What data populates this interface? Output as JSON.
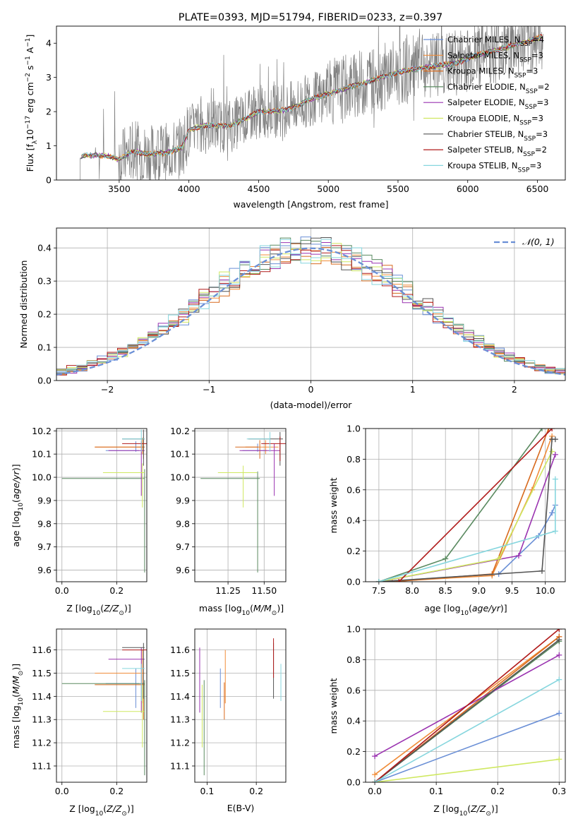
{
  "title": "PLATE=0393, MJD=51794, FIBERID=0233, z=0.397",
  "colors": {
    "Chabrier MILES": "#6a8fd6",
    "Salpeter MILES": "#f08d3a",
    "Kroupa MILES": "#d86a1e",
    "Chabrier ELODIE": "#5a8a60",
    "Salpeter ELODIE": "#9a33b0",
    "Kroupa ELODIE": "#cfe860",
    "Chabrier STELIB": "#555555",
    "Salpeter STELIB": "#b01a1a",
    "Kroupa STELIB": "#86d6de"
  },
  "chart_data": [
    {
      "type": "line",
      "xlabel": "wavelength [Angstrom, rest frame]",
      "ylabel": "Flux [f_λ10^-17 erg cm^-2 s^-1 A^-1]",
      "xlim": [
        3050,
        6700
      ],
      "ylim": [
        0,
        4.5
      ],
      "xticks": [
        3500,
        4000,
        4500,
        5000,
        5500,
        6000,
        6500
      ],
      "yticks": [
        0,
        1,
        2,
        3,
        4
      ],
      "continuum": {
        "x": [
          3220,
          3250,
          3400,
          3500,
          3600,
          3700,
          3850,
          3950,
          4000,
          4100,
          4300,
          4500,
          4700,
          4900,
          5100,
          5300,
          5500,
          5700,
          5900,
          6100,
          6300,
          6540
        ],
        "y": [
          0.65,
          0.72,
          0.72,
          0.6,
          0.85,
          0.75,
          0.8,
          0.95,
          1.45,
          1.6,
          1.58,
          2.0,
          2.05,
          2.4,
          2.65,
          2.9,
          3.15,
          3.3,
          3.4,
          3.7,
          3.9,
          4.2
        ]
      },
      "legend": [
        {
          "name": "Chabrier MILES",
          "label": "Chabrier MILES, N",
          "sub": "SSP",
          "n": "=4"
        },
        {
          "name": "Salpeter MILES",
          "label": "Salpeter MILES, N",
          "sub": "SSP",
          "n": "=3"
        },
        {
          "name": "Kroupa MILES",
          "label": "Kroupa MILES, N",
          "sub": "SSP",
          "n": "=3"
        },
        {
          "name": "Chabrier ELODIE",
          "label": "Chabrier ELODIE, N",
          "sub": "SSP",
          "n": "=2"
        },
        {
          "name": "Salpeter ELODIE",
          "label": "Salpeter ELODIE, N",
          "sub": "SSP",
          "n": "=3"
        },
        {
          "name": "Kroupa ELODIE",
          "label": "Kroupa ELODIE, N",
          "sub": "SSP",
          "n": "=3"
        },
        {
          "name": "Chabrier STELIB",
          "label": "Chabrier STELIB, N",
          "sub": "SSP",
          "n": "=3"
        },
        {
          "name": "Salpeter STELIB",
          "label": "Salpeter STELIB, N",
          "sub": "SSP",
          "n": "=2"
        },
        {
          "name": "Kroupa STELIB",
          "label": "Kroupa STELIB, N",
          "sub": "SSP",
          "n": "=3"
        }
      ],
      "legend_position": "upper-right"
    },
    {
      "type": "histogram",
      "xlabel": "(data-model)/error",
      "ylabel": "Normed distribution",
      "xlim": [
        -2.5,
        2.5
      ],
      "ylim": [
        0,
        0.46
      ],
      "xticks": [
        -2,
        -1,
        0,
        1,
        2
      ],
      "yticks": [
        0.0,
        0.1,
        0.2,
        0.3,
        0.4
      ],
      "bin_width": 0.1,
      "gaussian_label": "𝒩(0, 1)",
      "legend_position": "upper-right"
    },
    {
      "type": "scatter",
      "xlabel": "Z [log10(Z/Z⊙)]",
      "ylabel": "age [log10(age/yr)]",
      "xlim": [
        -0.02,
        0.31
      ],
      "ylim": [
        9.55,
        10.21
      ],
      "xticks": [
        0.0,
        0.2
      ],
      "yticks": [
        9.6,
        9.7,
        9.8,
        9.9,
        10.0,
        10.1,
        10.2
      ]
    },
    {
      "type": "scatter",
      "xlabel": "mass [log10(M/M⊙)]",
      "ylabel": "",
      "xlim": [
        11.02,
        11.65
      ],
      "ylim": [
        9.55,
        10.21
      ],
      "xticks": [
        11.25,
        11.5
      ],
      "yticks": [
        9.6,
        9.7,
        9.8,
        9.9,
        10.0,
        10.1,
        10.2
      ]
    },
    {
      "type": "line",
      "xlabel": "age [log10(age/yr)]",
      "ylabel": "mass weight",
      "xlim": [
        7.3,
        10.3
      ],
      "ylim": [
        0,
        1
      ],
      "xticks": [
        7.5,
        8.0,
        8.5,
        9.0,
        9.5,
        10.0
      ],
      "yticks": [
        0.0,
        0.2,
        0.4,
        0.6,
        0.8,
        1.0
      ],
      "series": [
        {
          "name": "Chabrier MILES",
          "x": [
            7.5,
            9.3,
            9.9,
            10.1,
            10.15
          ],
          "y": [
            0,
            0.05,
            0.3,
            0.45,
            0.5
          ]
        },
        {
          "name": "Salpeter MILES",
          "x": [
            7.6,
            9.2,
            9.8,
            10.1
          ],
          "y": [
            0,
            0.04,
            0.6,
            0.95
          ]
        },
        {
          "name": "Kroupa MILES",
          "x": [
            7.7,
            9.2,
            10.05
          ],
          "y": [
            0,
            0.05,
            1.0
          ]
        },
        {
          "name": "Chabrier ELODIE",
          "x": [
            7.5,
            8.5,
            9.95
          ],
          "y": [
            0,
            0.15,
            1.0
          ]
        },
        {
          "name": "Salpeter ELODIE",
          "x": [
            7.5,
            9.6,
            10.15
          ],
          "y": [
            0,
            0.17,
            0.83
          ]
        },
        {
          "name": "Kroupa ELODIE",
          "x": [
            7.5,
            9.3,
            10.1
          ],
          "y": [
            0,
            0.15,
            0.85
          ]
        },
        {
          "name": "Chabrier STELIB",
          "x": [
            7.5,
            9.95,
            10.1,
            10.15
          ],
          "y": [
            0,
            0.07,
            0.93,
            0.93
          ]
        },
        {
          "name": "Salpeter STELIB",
          "x": [
            7.8,
            10.1
          ],
          "y": [
            0,
            1.0
          ]
        },
        {
          "name": "Kroupa STELIB",
          "x": [
            7.5,
            10.15,
            10.15
          ],
          "y": [
            0,
            0.33,
            0.67
          ]
        }
      ]
    },
    {
      "type": "scatter",
      "xlabel": "Z [log10(Z/Z⊙)]",
      "ylabel": "mass [log10(M/M⊙)]",
      "xlim": [
        -0.02,
        0.31
      ],
      "ylim": [
        11.03,
        11.69
      ],
      "xticks": [
        0.0,
        0.2
      ],
      "yticks": [
        11.1,
        11.2,
        11.3,
        11.4,
        11.5,
        11.6
      ]
    },
    {
      "type": "scatter",
      "xlabel": "E(B-V)",
      "ylabel": "",
      "xlim": [
        0.075,
        0.26
      ],
      "ylim": [
        11.03,
        11.69
      ],
      "xticks": [
        0.1,
        0.2
      ],
      "yticks": [
        11.1,
        11.2,
        11.3,
        11.4,
        11.5,
        11.6
      ]
    },
    {
      "type": "line",
      "xlabel": "Z [log10(Z/Z⊙)]",
      "ylabel": "mass weight",
      "xlim": [
        -0.015,
        0.31
      ],
      "ylim": [
        0,
        1
      ],
      "xticks": [
        0.0,
        0.1,
        0.2,
        0.3
      ],
      "yticks": [
        0.0,
        0.2,
        0.4,
        0.6,
        0.8,
        1.0
      ],
      "series": [
        {
          "name": "Chabrier MILES",
          "x": [
            0,
            0.3
          ],
          "y": [
            0,
            0.45
          ]
        },
        {
          "name": "Salpeter MILES",
          "x": [
            0,
            0.3
          ],
          "y": [
            0.05,
            0.95
          ]
        },
        {
          "name": "Kroupa MILES",
          "x": [
            0,
            0.3
          ],
          "y": [
            0,
            0.95
          ]
        },
        {
          "name": "Chabrier ELODIE",
          "x": [
            0,
            0.3
          ],
          "y": [
            0,
            0.92
          ]
        },
        {
          "name": "Salpeter ELODIE",
          "x": [
            0,
            0.3
          ],
          "y": [
            0.17,
            0.83
          ]
        },
        {
          "name": "Kroupa ELODIE",
          "x": [
            0,
            0.3
          ],
          "y": [
            0,
            0.15
          ]
        },
        {
          "name": "Chabrier STELIB",
          "x": [
            0,
            0.3
          ],
          "y": [
            0,
            0.93
          ]
        },
        {
          "name": "Salpeter STELIB",
          "x": [
            0,
            0.3
          ],
          "y": [
            0,
            1.0
          ]
        },
        {
          "name": "Kroupa STELIB",
          "x": [
            0,
            0.3
          ],
          "y": [
            0,
            0.67
          ]
        }
      ]
    }
  ],
  "ssp_fits": [
    {
      "name": "Chabrier MILES",
      "age": 10.115,
      "age_lo": 10.11,
      "Z": 0.27,
      "Z_lo": 0.16,
      "mass": 11.455,
      "mass_lo": 11.35,
      "mass_hi": 11.52,
      "ebv": 0.127
    },
    {
      "name": "Salpeter MILES",
      "age": 10.13,
      "age_lo": 10.1,
      "Z": 0.29,
      "Z_lo": 0.12,
      "mass": 11.5,
      "mass_lo": 11.37,
      "mass_hi": 11.6,
      "ebv": 0.137
    },
    {
      "name": "Kroupa MILES",
      "age": 10.13,
      "age_lo": 10.08,
      "Z": 0.29,
      "Z_lo": 0.12,
      "mass": 11.45,
      "mass_lo": 11.3,
      "mass_hi": 11.46,
      "ebv": 0.135
    },
    {
      "name": "Chabrier ELODIE",
      "age": 9.995,
      "age_lo": 9.59,
      "Z": 0.29,
      "Z_lo": 0.0,
      "mass": 11.455,
      "mass_lo": 11.06,
      "mass_hi": 11.47,
      "ebv": 0.094
    },
    {
      "name": "Salpeter ELODIE",
      "age": 10.115,
      "age_lo": 9.92,
      "Z": 0.29,
      "Z_lo": 0.17,
      "mass": 11.56,
      "mass_lo": 11.33,
      "mass_hi": 11.61,
      "ebv": 0.085
    },
    {
      "name": "Kroupa ELODIE",
      "age": 10.02,
      "age_lo": 9.87,
      "Z": 0.29,
      "Z_lo": 0.15,
      "mass": 11.335,
      "mass_lo": 11.18,
      "mass_hi": 11.45,
      "ebv": 0.09
    },
    {
      "name": "Chabrier STELIB",
      "age": 10.165,
      "age_lo": 10.05,
      "Z": 0.29,
      "Z_lo": 0.22,
      "mass": 11.61,
      "mass_lo": 11.39,
      "mass_hi": 11.63,
      "ebv": 0.235
    },
    {
      "name": "Salpeter STELIB",
      "age": 10.145,
      "age_lo": 10.07,
      "Z": 0.3,
      "Z_lo": 0.22,
      "mass": 11.6,
      "mass_lo": 11.48,
      "mass_hi": 11.65,
      "ebv": 0.235
    },
    {
      "name": "Kroupa STELIB",
      "age": 10.165,
      "age_lo": 10.11,
      "Z": 0.29,
      "Z_lo": 0.22,
      "mass": 11.52,
      "mass_lo": 11.38,
      "mass_hi": 11.54,
      "ebv": 0.25
    }
  ]
}
